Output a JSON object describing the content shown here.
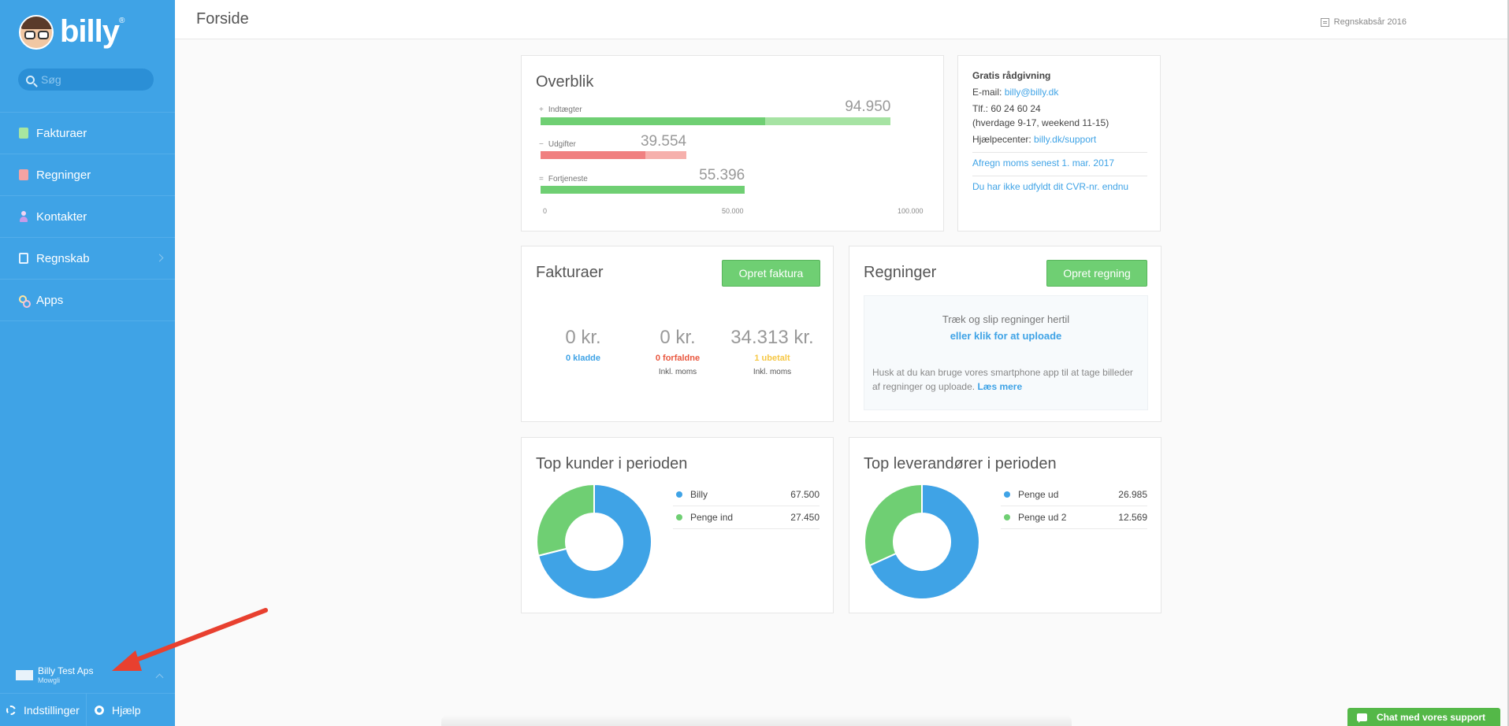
{
  "sidebar": {
    "logo_text": "billy",
    "logo_mark": "®",
    "search_placeholder": "Søg",
    "items": [
      {
        "label": "Fakturaer",
        "icon": "invoice-icon"
      },
      {
        "label": "Regninger",
        "icon": "bill-icon"
      },
      {
        "label": "Kontakter",
        "icon": "contact-icon"
      },
      {
        "label": "Regnskab",
        "icon": "accounting-icon"
      },
      {
        "label": "Apps",
        "icon": "apps-icon"
      }
    ],
    "company_name": "Billy Test Aps",
    "company_sub": "Mowgli",
    "settings_label": "Indstillinger",
    "help_label": "Hjælp"
  },
  "header": {
    "title": "Forside",
    "fiscal_year": "Regnskabsår 2016"
  },
  "overview": {
    "title": "Overblik",
    "rows": [
      {
        "sign": "+",
        "label": "Indtægter",
        "value_text": "94.950",
        "value": 94950,
        "paid_value": 61000,
        "color": "#6fcf73",
        "light_color": "#a6e3a3"
      },
      {
        "sign": "−",
        "label": "Udgifter",
        "value_text": "39.554",
        "value": 39554,
        "paid_value": 28500,
        "color": "#f08080",
        "light_color": "#f6b0ac"
      },
      {
        "sign": "=",
        "label": "Fortjeneste",
        "value_text": "55.396",
        "value": 55396,
        "paid_value": 55396,
        "color": "#6fcf73",
        "light_color": "#6fcf73"
      }
    ],
    "axis_max": 100000,
    "ticks": [
      "0",
      "50.000",
      "100.000"
    ]
  },
  "info": {
    "heading": "Gratis rådgivning",
    "email_label": "E-mail:",
    "email": "billy@billy.dk",
    "phone": "Tlf.: 60 24 60 24",
    "hours": "(hverdage 9-17, weekend 11-15)",
    "help_center_label": "Hjælpecenter:",
    "help_center_link": "billy.dk/support",
    "vat_link": "Afregn moms senest 1. mar. 2017",
    "cvr_link": "Du har ikke udfyldt dit CVR-nr. endnu"
  },
  "invoices": {
    "title": "Fakturaer",
    "create_label": "Opret faktura",
    "stats": [
      {
        "amount": "0 kr.",
        "link": "0 kladde",
        "color": "#3fa3e6",
        "note": ""
      },
      {
        "amount": "0 kr.",
        "link": "0 forfaldne",
        "color": "#e9573f",
        "note": "Inkl. moms"
      },
      {
        "amount": "34.313 kr.",
        "link": "1 ubetalt",
        "color": "#f6c744",
        "note": "Inkl. moms"
      }
    ]
  },
  "bills": {
    "title": "Regninger",
    "create_label": "Opret regning",
    "drop_title": "Træk og slip regninger hertil",
    "drop_link": "eller klik for at uploade",
    "hint_text": "Husk at du kan bruge vores smartphone app til at tage billeder af regninger og uploade.",
    "hint_link": "Læs mere"
  },
  "top_customers": {
    "title": "Top kunder i perioden",
    "items": [
      {
        "name": "Billy",
        "value_text": "67.500",
        "value": 67500,
        "color": "#3fa3e6"
      },
      {
        "name": "Penge ind",
        "value_text": "27.450",
        "value": 27450,
        "color": "#6fcf73"
      }
    ]
  },
  "top_suppliers": {
    "title": "Top leverandører i perioden",
    "items": [
      {
        "name": "Penge ud",
        "value_text": "26.985",
        "value": 26985,
        "color": "#3fa3e6"
      },
      {
        "name": "Penge ud 2",
        "value_text": "12.569",
        "value": 12569,
        "color": "#6fcf73"
      }
    ]
  },
  "chat": {
    "label": "Chat med vores support"
  }
}
